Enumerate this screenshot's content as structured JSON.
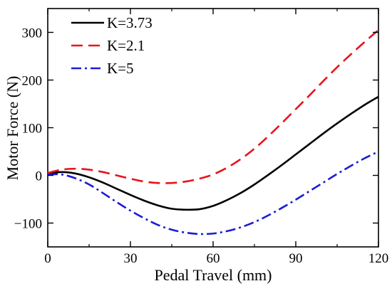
{
  "chart_data": {
    "type": "line",
    "title": "",
    "xlabel": "Pedal Travel (mm)",
    "ylabel": "Motor Force (N)",
    "xlim": [
      0,
      120
    ],
    "ylim": [
      -150,
      350
    ],
    "xticks": [
      0,
      30,
      60,
      90,
      120
    ],
    "yticks": [
      -100,
      0,
      100,
      200,
      300
    ],
    "x_tick_labels": [
      "0",
      "30",
      "60",
      "90",
      "120"
    ],
    "y_tick_labels": [
      "−100",
      "0",
      "100",
      "200",
      "300"
    ],
    "grid": false,
    "legend_position": "top-left",
    "series": [
      {
        "name": "K=3.73",
        "color": "#000000",
        "dash": "solid",
        "x": [
          0,
          5,
          10,
          15,
          20,
          25,
          30,
          35,
          40,
          45,
          50,
          55,
          60,
          65,
          70,
          75,
          80,
          85,
          90,
          95,
          100,
          105,
          110,
          115,
          120
        ],
        "y": [
          3,
          7,
          4,
          -4,
          -15,
          -28,
          -41,
          -53,
          -63,
          -70,
          -72,
          -71,
          -64,
          -52,
          -37,
          -19,
          1,
          22,
          44,
          66,
          88,
          109,
          129,
          148,
          165
        ]
      },
      {
        "name": "K=2.1",
        "color": "#e8141b",
        "dash": "dashed",
        "x": [
          0,
          5,
          10,
          15,
          20,
          25,
          30,
          35,
          40,
          45,
          50,
          55,
          60,
          65,
          70,
          75,
          80,
          85,
          90,
          95,
          100,
          105,
          110,
          115,
          120
        ],
        "y": [
          5,
          12,
          14,
          12,
          7,
          0,
          -7,
          -13,
          -16,
          -16,
          -13,
          -7,
          2,
          16,
          34,
          56,
          82,
          110,
          139,
          168,
          198,
          227,
          254,
          280,
          305
        ]
      },
      {
        "name": "K=5",
        "color": "#1c1cd6",
        "dash": "dashdot",
        "x": [
          0,
          5,
          10,
          15,
          20,
          25,
          30,
          35,
          40,
          45,
          50,
          55,
          60,
          65,
          70,
          75,
          80,
          85,
          90,
          95,
          100,
          105,
          110,
          115,
          120
        ],
        "y": [
          2,
          2,
          -6,
          -19,
          -37,
          -56,
          -74,
          -90,
          -104,
          -114,
          -120,
          -123,
          -122,
          -117,
          -109,
          -98,
          -84,
          -68,
          -51,
          -33,
          -15,
          3,
          20,
          36,
          50
        ]
      }
    ]
  }
}
